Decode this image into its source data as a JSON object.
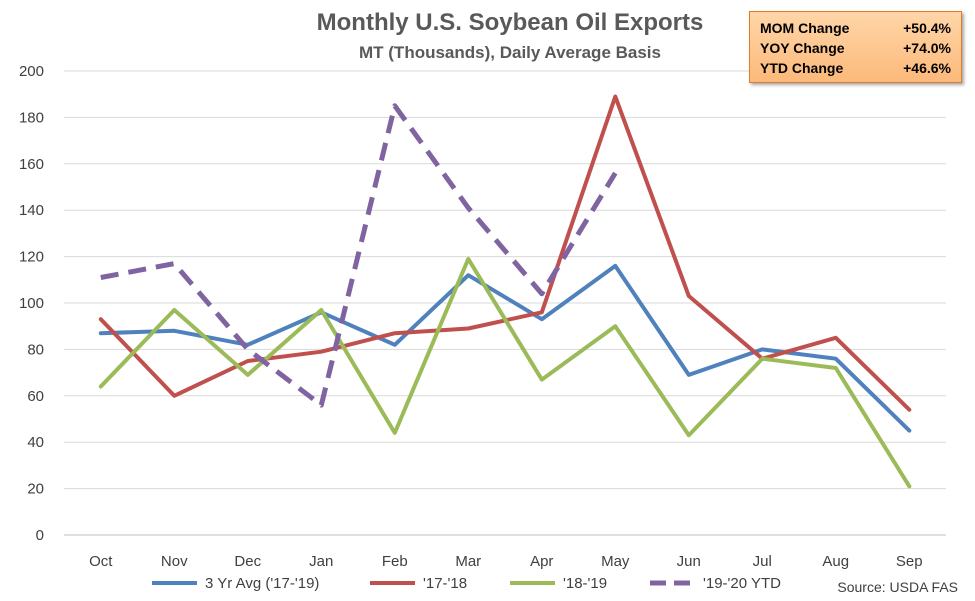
{
  "stats": [
    {
      "label": "MOM Change",
      "value": "+50.4%"
    },
    {
      "label": "YOY Change",
      "value": "+74.0%"
    },
    {
      "label": "YTD Change",
      "value": "+46.6%"
    }
  ],
  "source": "Source: USDA FAS",
  "chart_data": {
    "type": "line",
    "title": "Monthly U.S. Soybean Oil Exports",
    "subtitle": "MT (Thousands), Daily Average Basis",
    "categories": [
      "Oct",
      "Nov",
      "Dec",
      "Jan",
      "Feb",
      "Mar",
      "Apr",
      "May",
      "Jun",
      "Jul",
      "Aug",
      "Sep"
    ],
    "ylim": [
      0,
      200
    ],
    "yticks": [
      0,
      20,
      40,
      60,
      80,
      100,
      120,
      140,
      160,
      180,
      200
    ],
    "grid": true,
    "legend_position": "bottom",
    "series": [
      {
        "name": "3 Yr Avg ('17-'19)",
        "color": "#4f81bd",
        "dashed": false,
        "values": [
          87,
          88,
          82,
          96,
          82,
          112,
          93,
          116,
          69,
          80,
          76,
          45
        ]
      },
      {
        "name": "'17-'18",
        "color": "#c0504d",
        "dashed": false,
        "values": [
          93,
          60,
          75,
          79,
          87,
          89,
          96,
          189,
          103,
          76,
          85,
          54
        ]
      },
      {
        "name": "'18-'19",
        "color": "#9bbb59",
        "dashed": false,
        "values": [
          64,
          97,
          69,
          97,
          44,
          119,
          67,
          90,
          43,
          76,
          72,
          21
        ]
      },
      {
        "name": "'19-'20 YTD",
        "color": "#8064a2",
        "dashed": true,
        "values": [
          111,
          117,
          80,
          56,
          185,
          141,
          104,
          156,
          null,
          null,
          null,
          null
        ]
      }
    ]
  }
}
